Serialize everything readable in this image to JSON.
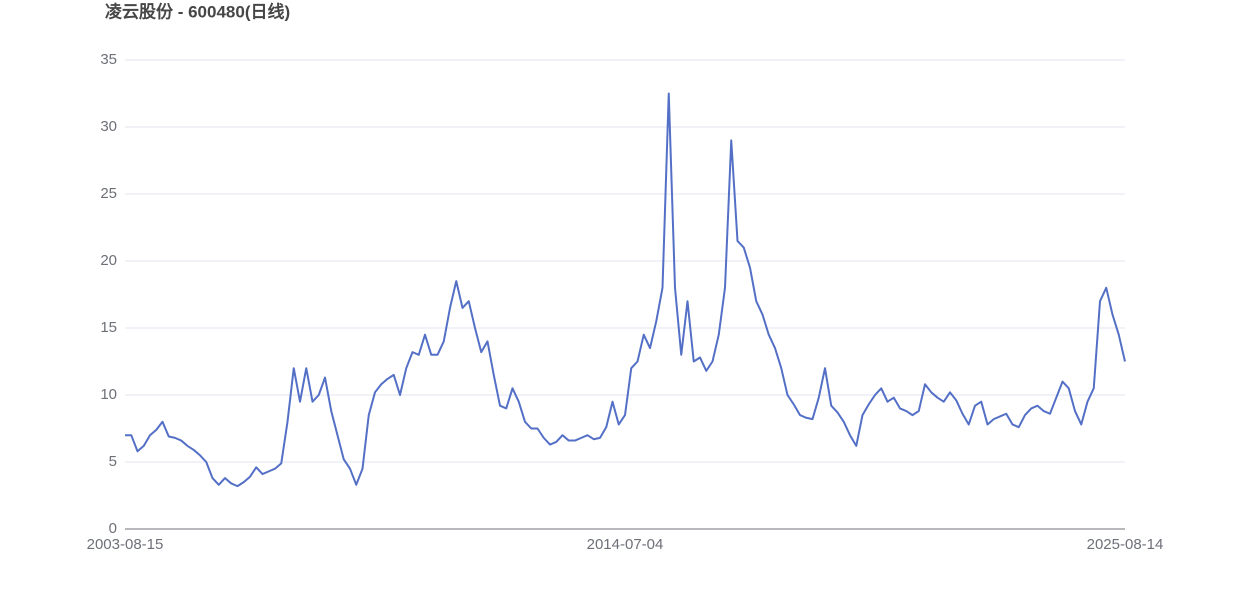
{
  "chart_data": {
    "type": "line",
    "title": "凌云股份 - 600480(日线)",
    "categories": [
      "2003-08-15",
      null,
      null,
      null,
      null,
      null,
      null,
      null,
      null,
      null,
      null,
      null,
      null,
      null,
      null,
      null,
      null,
      null,
      null,
      null,
      null,
      null,
      null,
      null,
      null,
      null,
      null,
      null,
      null,
      null,
      null,
      null,
      null,
      null,
      null,
      null,
      null,
      null,
      null,
      null,
      null,
      null,
      null,
      null,
      null,
      null,
      null,
      null,
      null,
      null,
      null,
      null,
      null,
      null,
      null,
      null,
      null,
      null,
      null,
      null,
      null,
      null,
      null,
      null,
      null,
      null,
      null,
      null,
      null,
      null,
      null,
      null,
      null,
      null,
      null,
      null,
      null,
      null,
      null,
      null,
      "2014-07-04",
      null,
      null,
      null,
      null,
      null,
      null,
      null,
      null,
      null,
      null,
      null,
      null,
      null,
      null,
      null,
      null,
      null,
      null,
      null,
      null,
      null,
      null,
      null,
      null,
      null,
      null,
      null,
      null,
      null,
      null,
      null,
      null,
      null,
      null,
      null,
      null,
      null,
      null,
      null,
      null,
      null,
      null,
      null,
      null,
      null,
      null,
      null,
      null,
      null,
      null,
      null,
      null,
      null,
      null,
      null,
      null,
      null,
      null,
      null,
      null,
      null,
      null,
      null,
      null,
      null,
      null,
      null,
      null,
      null,
      null,
      null,
      null,
      null,
      null,
      null,
      null,
      null,
      null,
      null,
      "2025-08-14"
    ],
    "values": [
      7.0,
      7.0,
      5.8,
      6.2,
      7.0,
      7.4,
      8.0,
      6.9,
      6.8,
      6.6,
      6.2,
      5.9,
      5.5,
      5.0,
      3.8,
      3.3,
      3.8,
      3.4,
      3.2,
      3.5,
      3.9,
      4.6,
      4.1,
      4.3,
      4.5,
      4.9,
      8.0,
      12.0,
      9.5,
      12.0,
      9.5,
      10.0,
      11.3,
      8.8,
      7.0,
      5.2,
      4.5,
      3.3,
      4.5,
      8.5,
      10.2,
      10.8,
      11.2,
      11.5,
      10.0,
      12.0,
      13.2,
      13.0,
      14.5,
      13.0,
      13.0,
      14.0,
      16.5,
      18.5,
      16.5,
      17.0,
      15.0,
      13.2,
      14.0,
      11.5,
      9.2,
      9.0,
      10.5,
      9.5,
      8.0,
      7.5,
      7.5,
      6.8,
      6.3,
      6.5,
      7.0,
      6.6,
      6.6,
      6.8,
      7.0,
      6.7,
      6.8,
      7.6,
      9.5,
      7.8,
      8.5,
      12.0,
      12.5,
      14.5,
      13.5,
      15.5,
      18.0,
      32.5,
      18.0,
      13.0,
      17.0,
      12.5,
      12.8,
      11.8,
      12.5,
      14.5,
      18.0,
      29.0,
      21.5,
      21.0,
      19.5,
      17.0,
      16.0,
      14.5,
      13.5,
      12.0,
      10.0,
      9.3,
      8.5,
      8.3,
      8.2,
      9.8,
      12.0,
      9.2,
      8.7,
      8.0,
      7.0,
      6.2,
      8.5,
      9.3,
      10.0,
      10.5,
      9.5,
      9.8,
      9.0,
      8.8,
      8.5,
      8.8,
      10.8,
      10.2,
      9.8,
      9.5,
      10.2,
      9.6,
      8.6,
      7.8,
      9.2,
      9.5,
      7.8,
      8.2,
      8.4,
      8.6,
      7.8,
      7.6,
      8.5,
      9.0,
      9.2,
      8.8,
      8.6,
      9.8,
      11.0,
      10.5,
      8.8,
      7.8,
      9.5,
      10.5,
      17.0,
      18.0,
      16.0,
      14.5,
      12.5
    ],
    "color": "#5470c6",
    "ylim": [
      0,
      35
    ],
    "yticks": [
      0,
      5,
      10,
      15,
      20,
      25,
      30,
      35
    ],
    "grid": true
  }
}
